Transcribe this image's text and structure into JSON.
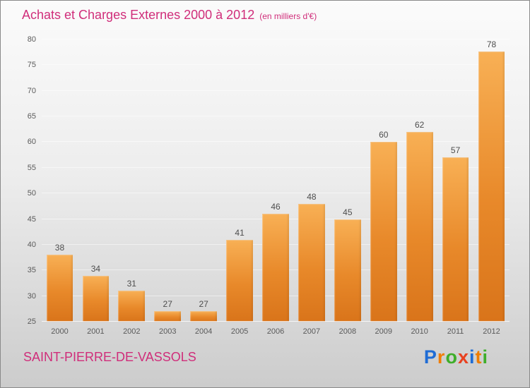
{
  "header": {
    "title": "Achats et Charges Externes 2000 à 2012",
    "subtitle": "(en milliers d'€)"
  },
  "footer": {
    "location": "SAINT-PIERRE-DE-VASSOLS"
  },
  "logo": {
    "name": "Proxiti",
    "letters": [
      {
        "ch": "P",
        "color": "#1f6cd5"
      },
      {
        "ch": "r",
        "color": "#f07d00"
      },
      {
        "ch": "o",
        "color": "#3fae2a"
      },
      {
        "ch": "x",
        "color": "#e8411f"
      },
      {
        "ch": "i",
        "color": "#1f6cd5"
      },
      {
        "ch": "t",
        "color": "#f07d00"
      },
      {
        "ch": "i",
        "color": "#3fae2a"
      }
    ]
  },
  "chart_data": {
    "type": "bar",
    "title": "Achats et Charges Externes 2000 à 2012",
    "subtitle": "(en milliers d'€)",
    "categories": [
      "2000",
      "2001",
      "2002",
      "2003",
      "2004",
      "2005",
      "2006",
      "2007",
      "2008",
      "2009",
      "2010",
      "2011",
      "2012"
    ],
    "values": [
      38,
      34,
      31,
      27,
      27,
      41,
      46,
      48,
      45,
      60,
      62,
      57,
      78
    ],
    "xlabel": "",
    "ylabel": "",
    "ylim": [
      25,
      80
    ],
    "ytick_step": 5,
    "grid": true,
    "legend": "none",
    "bar_color_top": "#f8b055",
    "bar_color_bottom": "#d9741a",
    "accent_color": "#d02d7a"
  }
}
